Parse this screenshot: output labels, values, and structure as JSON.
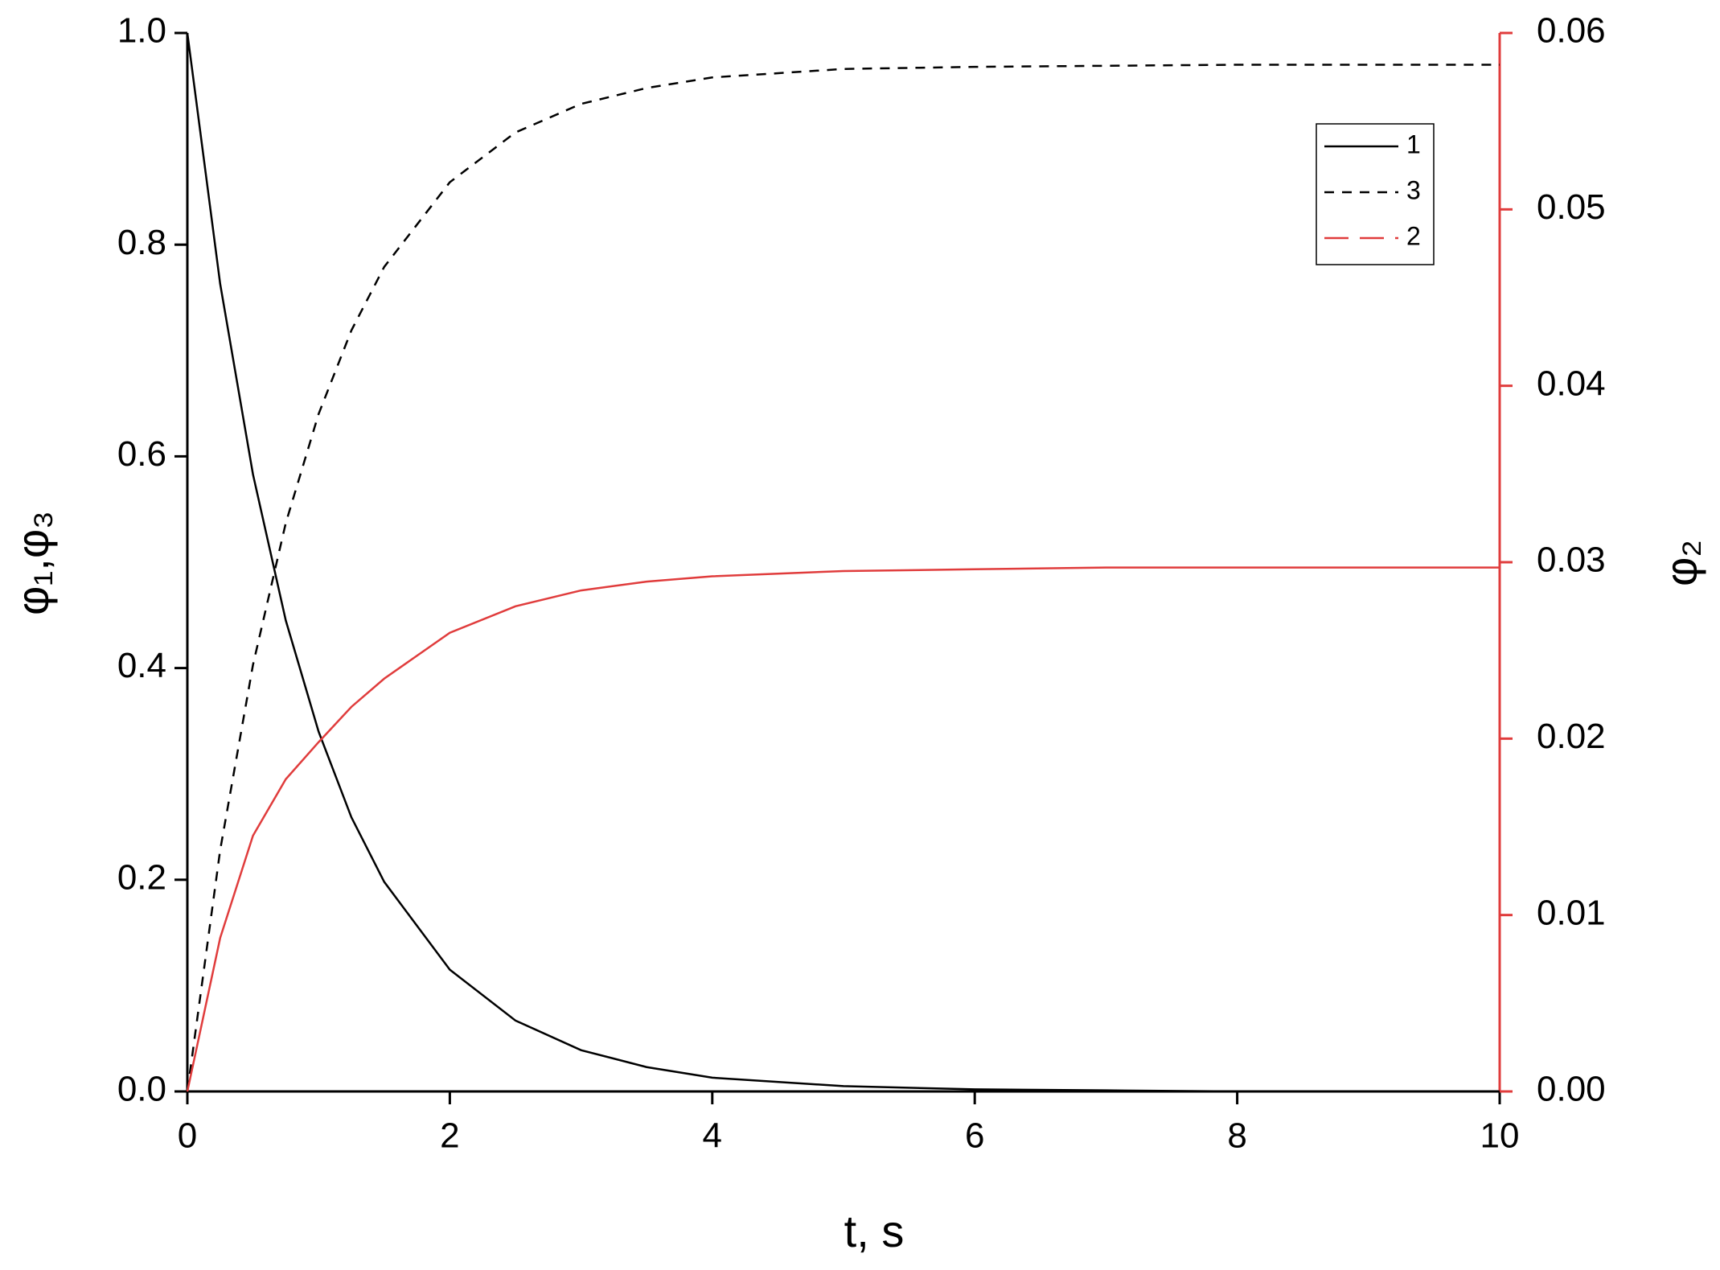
{
  "chart_data": {
    "type": "line",
    "xlabel": "t, s",
    "ylabel": "φ₁,φ₃",
    "y2label": "φ₂",
    "x": [
      0,
      0.25,
      0.5,
      0.75,
      1,
      1.25,
      1.5,
      2,
      2.5,
      3,
      3.5,
      4,
      5,
      6,
      7,
      8,
      9,
      10
    ],
    "series": [
      {
        "name": "1",
        "color": "#000000",
        "linestyle": "solid",
        "values": [
          1,
          0.763,
          0.583,
          0.445,
          0.34,
          0.259,
          0.198,
          0.115,
          0.067,
          0.039,
          0.023,
          0.013,
          0.005,
          0.002,
          0.001,
          0,
          0,
          0
        ]
      },
      {
        "name": "3",
        "color": "#000000",
        "linestyle": "dashed",
        "values": [
          0,
          0.228,
          0.403,
          0.537,
          0.64,
          0.719,
          0.779,
          0.859,
          0.906,
          0.933,
          0.948,
          0.958,
          0.966,
          0.968,
          0.969,
          0.97,
          0.97,
          0.97
        ]
      },
      {
        "name": "2",
        "color": "#e03c3c",
        "linestyle": "solid",
        "axis": "y2",
        "values": [
          0,
          0.0087,
          0.0145,
          0.0177,
          0.0198,
          0.0218,
          0.0234,
          0.026,
          0.0275,
          0.0284,
          0.0289,
          0.0292,
          0.0295,
          0.0296,
          0.0297,
          0.0297,
          0.0297,
          0.0297
        ]
      }
    ],
    "xlim": [
      0,
      10
    ],
    "xticks": [
      0,
      2,
      4,
      6,
      8,
      10
    ],
    "ylim": [
      0,
      1
    ],
    "yticks": [
      {
        "value": 0,
        "label": "0.0"
      },
      0.2,
      0.4,
      0.6,
      0.8,
      {
        "value": 1,
        "label": "1.0"
      }
    ],
    "y2lim": [
      0,
      0.06
    ],
    "y2ticks": [
      {
        "value": 0,
        "label": "0.00"
      },
      0.01,
      0.02,
      0.03,
      0.04,
      0.05,
      0.06
    ],
    "y2color": "#e03c3c",
    "legend": "upper right"
  }
}
